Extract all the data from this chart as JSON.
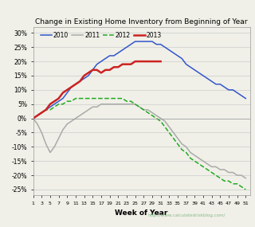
{
  "title": "Change in Existing Home Inventory from Beginning of Year",
  "xlabel": "Week of Year",
  "url_text": "http://www.calculatedriskblog.com/",
  "background_color": "#f0f0e8",
  "ylim": [
    -0.27,
    0.32
  ],
  "yticks": [
    -0.25,
    -0.2,
    -0.15,
    -0.1,
    -0.05,
    0.0,
    0.05,
    0.1,
    0.15,
    0.2,
    0.25,
    0.3
  ],
  "ytick_labels": [
    "-25%",
    "-20%",
    "-15%",
    "-10%",
    "-5%",
    "0%",
    "5%",
    "10%",
    "15%",
    "20%",
    "25%",
    "30%"
  ],
  "xtick_positions": [
    1,
    3,
    5,
    7,
    9,
    11,
    13,
    15,
    17,
    19,
    21,
    23,
    25,
    27,
    29,
    31,
    33,
    35,
    37,
    39,
    41,
    43,
    45,
    47,
    49,
    51
  ],
  "series": {
    "2010": {
      "color": "#3355cc",
      "linestyle": "-",
      "linewidth": 1.1,
      "weeks": [
        1,
        2,
        3,
        4,
        5,
        6,
        7,
        8,
        9,
        10,
        11,
        12,
        13,
        14,
        15,
        16,
        17,
        18,
        19,
        20,
        21,
        22,
        23,
        24,
        25,
        26,
        27,
        28,
        29,
        30,
        31,
        32,
        33,
        34,
        35,
        36,
        37,
        38,
        39,
        40,
        41,
        42,
        43,
        44,
        45,
        46,
        47,
        48,
        49,
        50,
        51
      ],
      "values": [
        0.0,
        0.01,
        0.02,
        0.03,
        0.04,
        0.05,
        0.06,
        0.07,
        0.09,
        0.11,
        0.12,
        0.13,
        0.14,
        0.15,
        0.17,
        0.19,
        0.2,
        0.21,
        0.22,
        0.22,
        0.23,
        0.24,
        0.25,
        0.26,
        0.27,
        0.27,
        0.27,
        0.27,
        0.27,
        0.26,
        0.26,
        0.25,
        0.24,
        0.23,
        0.22,
        0.21,
        0.19,
        0.18,
        0.17,
        0.16,
        0.15,
        0.14,
        0.13,
        0.12,
        0.12,
        0.11,
        0.1,
        0.1,
        0.09,
        0.08,
        0.07
      ]
    },
    "2011": {
      "color": "#aaaaaa",
      "linestyle": "-",
      "linewidth": 1.1,
      "weeks": [
        1,
        2,
        3,
        4,
        5,
        6,
        7,
        8,
        9,
        10,
        11,
        12,
        13,
        14,
        15,
        16,
        17,
        18,
        19,
        20,
        21,
        22,
        23,
        24,
        25,
        26,
        27,
        28,
        29,
        30,
        31,
        32,
        33,
        34,
        35,
        36,
        37,
        38,
        39,
        40,
        41,
        42,
        43,
        44,
        45,
        46,
        47,
        48,
        49,
        50,
        51
      ],
      "values": [
        0.0,
        -0.02,
        -0.05,
        -0.09,
        -0.12,
        -0.1,
        -0.07,
        -0.04,
        -0.02,
        -0.01,
        0.0,
        0.01,
        0.02,
        0.03,
        0.04,
        0.04,
        0.05,
        0.05,
        0.05,
        0.05,
        0.05,
        0.05,
        0.05,
        0.05,
        0.05,
        0.04,
        0.03,
        0.03,
        0.02,
        0.01,
        0.0,
        -0.01,
        -0.03,
        -0.05,
        -0.07,
        -0.09,
        -0.1,
        -0.12,
        -0.13,
        -0.14,
        -0.15,
        -0.16,
        -0.17,
        -0.17,
        -0.18,
        -0.18,
        -0.19,
        -0.19,
        -0.2,
        -0.2,
        -0.21
      ]
    },
    "2012": {
      "color": "#22aa22",
      "linestyle": "--",
      "linewidth": 1.1,
      "weeks": [
        1,
        2,
        3,
        4,
        5,
        6,
        7,
        8,
        9,
        10,
        11,
        12,
        13,
        14,
        15,
        16,
        17,
        18,
        19,
        20,
        21,
        22,
        23,
        24,
        25,
        26,
        27,
        28,
        29,
        30,
        31,
        32,
        33,
        34,
        35,
        36,
        37,
        38,
        39,
        40,
        41,
        42,
        43,
        44,
        45,
        46,
        47,
        48,
        49,
        50,
        51
      ],
      "values": [
        0.0,
        0.01,
        0.02,
        0.03,
        0.03,
        0.04,
        0.05,
        0.05,
        0.06,
        0.06,
        0.07,
        0.07,
        0.07,
        0.07,
        0.07,
        0.07,
        0.07,
        0.07,
        0.07,
        0.07,
        0.07,
        0.07,
        0.06,
        0.06,
        0.05,
        0.04,
        0.03,
        0.02,
        0.01,
        0.0,
        -0.01,
        -0.03,
        -0.05,
        -0.07,
        -0.09,
        -0.11,
        -0.12,
        -0.14,
        -0.15,
        -0.16,
        -0.17,
        -0.18,
        -0.19,
        -0.2,
        -0.21,
        -0.22,
        -0.22,
        -0.23,
        -0.23,
        -0.24,
        -0.25
      ]
    },
    "2013": {
      "color": "#cc2222",
      "linestyle": "-",
      "linewidth": 1.8,
      "weeks": [
        1,
        2,
        3,
        4,
        5,
        6,
        7,
        8,
        9,
        10,
        11,
        12,
        13,
        14,
        15,
        16,
        17,
        18,
        19,
        20,
        21,
        22,
        23,
        24,
        25,
        26,
        27,
        28,
        29,
        30,
        31
      ],
      "values": [
        0.0,
        0.01,
        0.02,
        0.03,
        0.05,
        0.06,
        0.07,
        0.09,
        0.1,
        0.11,
        0.12,
        0.13,
        0.15,
        0.16,
        0.17,
        0.17,
        0.16,
        0.17,
        0.17,
        0.18,
        0.18,
        0.19,
        0.19,
        0.19,
        0.2,
        0.2,
        0.2,
        0.2,
        0.2,
        0.2,
        0.2
      ]
    }
  }
}
